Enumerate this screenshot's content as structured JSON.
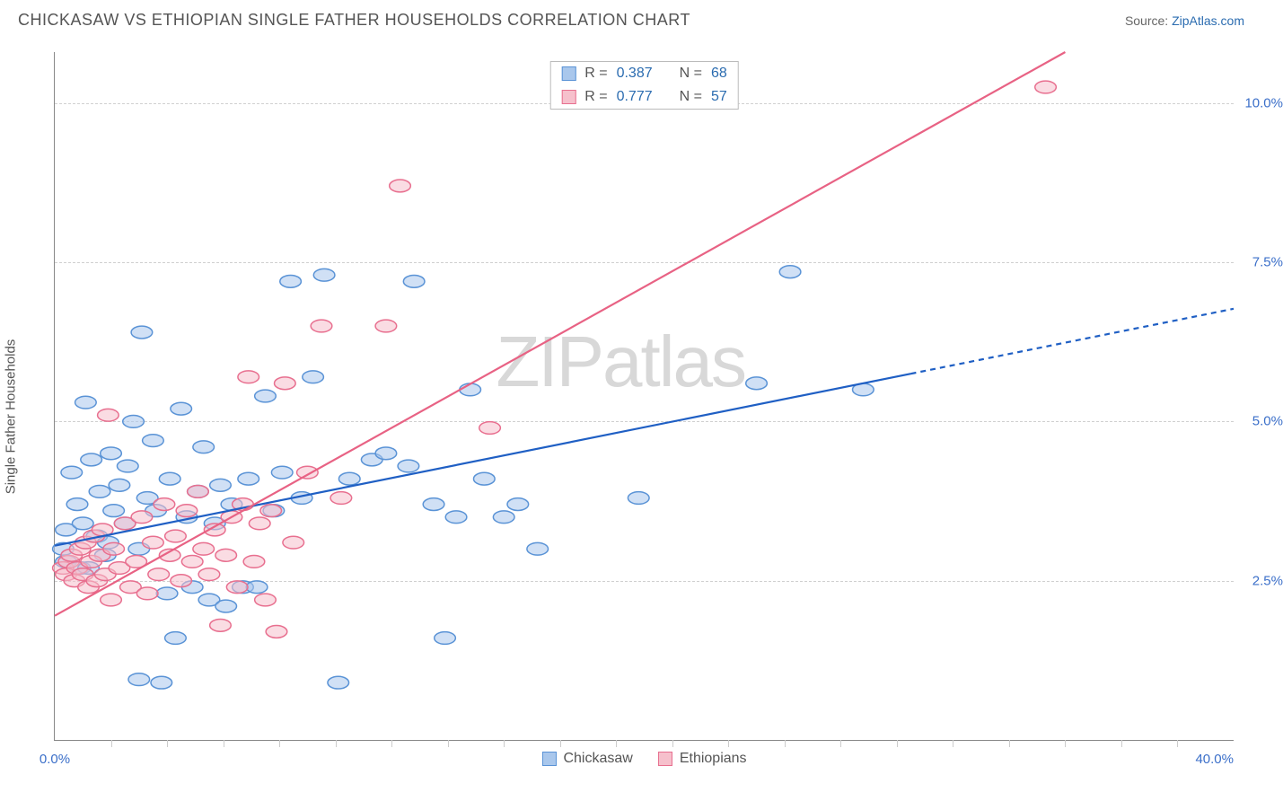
{
  "header": {
    "title": "CHICKASAW VS ETHIOPIAN SINGLE FATHER HOUSEHOLDS CORRELATION CHART",
    "source_prefix": "Source: ",
    "source_link": "ZipAtlas.com"
  },
  "watermark": "ZIPatlas",
  "chart": {
    "type": "scatter",
    "background_color": "#ffffff",
    "grid_color": "#d0d0d0",
    "axis_color": "#888888",
    "tick_label_color": "#3b6fc9",
    "axis_label_color": "#555555",
    "y_axis": {
      "label": "Single Father Households",
      "min": 0.0,
      "max": 10.8,
      "ticks": [
        2.5,
        5.0,
        7.5,
        10.0
      ],
      "tick_labels": [
        "2.5%",
        "5.0%",
        "7.5%",
        "10.0%"
      ]
    },
    "x_axis": {
      "min": 0.0,
      "max": 42.0,
      "small_ticks": [
        2,
        4,
        6,
        8,
        10,
        12,
        14,
        16,
        18,
        20,
        22,
        24,
        26,
        28,
        30,
        32,
        34,
        36,
        38,
        40
      ],
      "end_tick_labels": {
        "left": "0.0%",
        "right": "40.0%"
      }
    },
    "top_legend": [
      {
        "swatch_fill": "#a9c7ec",
        "swatch_border": "#5a93d6",
        "r_label": "R =",
        "r_value": "0.387",
        "n_label": "N =",
        "n_value": "68"
      },
      {
        "swatch_fill": "#f6c0cc",
        "swatch_border": "#e86f8f",
        "r_label": "R =",
        "r_value": "0.777",
        "n_label": "N =",
        "n_value": "57"
      }
    ],
    "bottom_legend": [
      {
        "swatch_fill": "#a9c7ec",
        "swatch_border": "#5a93d6",
        "label": "Chickasaw"
      },
      {
        "swatch_fill": "#f6c0cc",
        "swatch_border": "#e86f8f",
        "label": "Ethiopians"
      }
    ],
    "series": [
      {
        "name": "Chickasaw",
        "marker_fill": "#a9c7ec",
        "marker_stroke": "#5a93d6",
        "marker_opacity": 0.55,
        "marker_radius": 9,
        "trend_line": {
          "color": "#1f5fc4",
          "width": 2.2,
          "x1": 0,
          "y1": 3.05,
          "x2": 30.5,
          "y2": 5.75,
          "dash_extend": {
            "x2": 42,
            "y2": 6.77
          }
        },
        "points": [
          [
            0.3,
            3.0
          ],
          [
            0.4,
            2.8
          ],
          [
            0.4,
            3.3
          ],
          [
            0.6,
            4.2
          ],
          [
            0.8,
            3.7
          ],
          [
            0.9,
            2.7
          ],
          [
            1.0,
            3.4
          ],
          [
            1.1,
            5.3
          ],
          [
            1.2,
            2.7
          ],
          [
            1.3,
            4.4
          ],
          [
            1.5,
            3.2
          ],
          [
            1.6,
            3.9
          ],
          [
            1.8,
            2.9
          ],
          [
            1.9,
            3.1
          ],
          [
            2.0,
            4.5
          ],
          [
            2.1,
            3.6
          ],
          [
            2.3,
            4.0
          ],
          [
            2.5,
            3.4
          ],
          [
            2.6,
            4.3
          ],
          [
            2.8,
            5.0
          ],
          [
            3.0,
            0.95
          ],
          [
            3.0,
            3.0
          ],
          [
            3.1,
            6.4
          ],
          [
            3.3,
            3.8
          ],
          [
            3.5,
            4.7
          ],
          [
            3.6,
            3.6
          ],
          [
            3.8,
            0.9
          ],
          [
            4.0,
            2.3
          ],
          [
            4.1,
            4.1
          ],
          [
            4.3,
            1.6
          ],
          [
            4.5,
            5.2
          ],
          [
            4.7,
            3.5
          ],
          [
            4.9,
            2.4
          ],
          [
            5.1,
            3.9
          ],
          [
            5.3,
            4.6
          ],
          [
            5.5,
            2.2
          ],
          [
            5.7,
            3.4
          ],
          [
            5.9,
            4.0
          ],
          [
            6.1,
            2.1
          ],
          [
            6.3,
            3.7
          ],
          [
            6.7,
            2.4
          ],
          [
            6.9,
            4.1
          ],
          [
            7.2,
            2.4
          ],
          [
            7.5,
            5.4
          ],
          [
            7.8,
            3.6
          ],
          [
            8.1,
            4.2
          ],
          [
            8.4,
            7.2
          ],
          [
            8.8,
            3.8
          ],
          [
            9.2,
            5.7
          ],
          [
            9.6,
            7.3
          ],
          [
            10.1,
            0.9
          ],
          [
            10.5,
            4.1
          ],
          [
            11.3,
            4.4
          ],
          [
            11.8,
            4.5
          ],
          [
            12.6,
            4.3
          ],
          [
            12.8,
            7.2
          ],
          [
            13.5,
            3.7
          ],
          [
            13.9,
            1.6
          ],
          [
            14.3,
            3.5
          ],
          [
            14.8,
            5.5
          ],
          [
            15.3,
            4.1
          ],
          [
            16.0,
            3.5
          ],
          [
            16.5,
            3.7
          ],
          [
            17.2,
            3.0
          ],
          [
            20.8,
            3.8
          ],
          [
            25.0,
            5.6
          ],
          [
            26.2,
            7.35
          ],
          [
            28.8,
            5.5
          ]
        ]
      },
      {
        "name": "Ethiopians",
        "marker_fill": "#f6c0cc",
        "marker_stroke": "#e86f8f",
        "marker_opacity": 0.55,
        "marker_radius": 9,
        "trend_line": {
          "color": "#e86284",
          "width": 2.2,
          "x1": 0,
          "y1": 1.95,
          "x2": 36,
          "y2": 10.8
        },
        "points": [
          [
            0.3,
            2.7
          ],
          [
            0.4,
            2.6
          ],
          [
            0.5,
            2.8
          ],
          [
            0.6,
            2.9
          ],
          [
            0.7,
            2.5
          ],
          [
            0.8,
            2.7
          ],
          [
            0.9,
            3.0
          ],
          [
            1.0,
            2.6
          ],
          [
            1.1,
            3.1
          ],
          [
            1.2,
            2.4
          ],
          [
            1.3,
            2.8
          ],
          [
            1.4,
            3.2
          ],
          [
            1.5,
            2.5
          ],
          [
            1.6,
            2.9
          ],
          [
            1.7,
            3.3
          ],
          [
            1.8,
            2.6
          ],
          [
            1.9,
            5.1
          ],
          [
            2.0,
            2.2
          ],
          [
            2.1,
            3.0
          ],
          [
            2.3,
            2.7
          ],
          [
            2.5,
            3.4
          ],
          [
            2.7,
            2.4
          ],
          [
            2.9,
            2.8
          ],
          [
            3.1,
            3.5
          ],
          [
            3.3,
            2.3
          ],
          [
            3.5,
            3.1
          ],
          [
            3.7,
            2.6
          ],
          [
            3.9,
            3.7
          ],
          [
            4.1,
            2.9
          ],
          [
            4.3,
            3.2
          ],
          [
            4.5,
            2.5
          ],
          [
            4.7,
            3.6
          ],
          [
            4.9,
            2.8
          ],
          [
            5.1,
            3.9
          ],
          [
            5.3,
            3.0
          ],
          [
            5.5,
            2.6
          ],
          [
            5.7,
            3.3
          ],
          [
            5.9,
            1.8
          ],
          [
            6.1,
            2.9
          ],
          [
            6.3,
            3.5
          ],
          [
            6.5,
            2.4
          ],
          [
            6.7,
            3.7
          ],
          [
            6.9,
            5.7
          ],
          [
            7.1,
            2.8
          ],
          [
            7.3,
            3.4
          ],
          [
            7.5,
            2.2
          ],
          [
            7.7,
            3.6
          ],
          [
            7.9,
            1.7
          ],
          [
            8.2,
            5.6
          ],
          [
            8.5,
            3.1
          ],
          [
            9.0,
            4.2
          ],
          [
            9.5,
            6.5
          ],
          [
            10.2,
            3.8
          ],
          [
            11.8,
            6.5
          ],
          [
            12.3,
            8.7
          ],
          [
            15.5,
            4.9
          ],
          [
            35.3,
            10.25
          ]
        ]
      }
    ]
  }
}
